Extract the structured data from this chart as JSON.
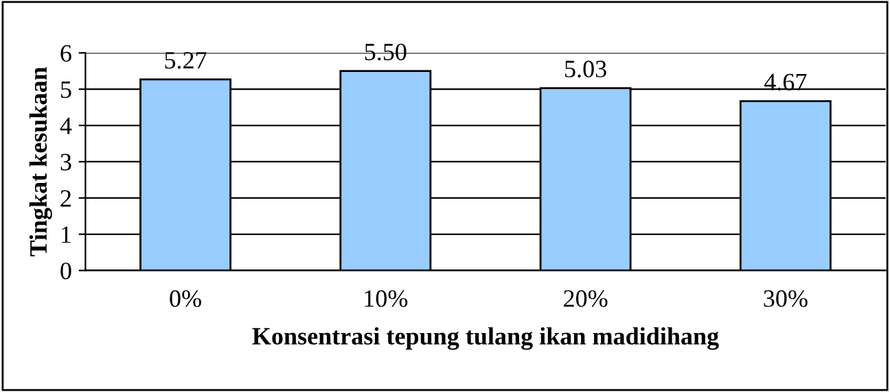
{
  "chart_data": {
    "type": "bar",
    "xlabel": "Konsentrasi tepung tulang ikan madidihang",
    "ylabel": "Tingkat kesukaan",
    "categories": [
      "0%",
      "10%",
      "20%",
      "30%"
    ],
    "values": [
      5.27,
      5.5,
      5.03,
      4.67
    ],
    "value_labels": [
      "5.27",
      "5.50",
      "5.03",
      "4.67"
    ],
    "color": "#99ccff",
    "ylim": [
      0,
      6
    ],
    "yticks": [
      0,
      1,
      2,
      3,
      4,
      5,
      6
    ],
    "grid": "y",
    "legend": false
  }
}
